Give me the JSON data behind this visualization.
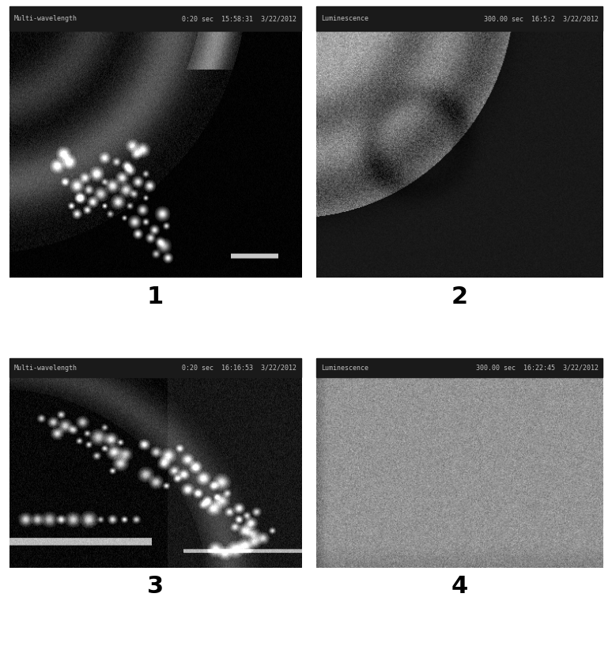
{
  "fig_width": 7.74,
  "fig_height": 8.27,
  "bg_color": "#ffffff",
  "panel_labels": [
    "1",
    "2",
    "3",
    "4"
  ],
  "label_fontsize": 22,
  "panel1_header_left": "Multi-wavelength",
  "panel1_header_right": "0:20 sec  15:58:31  3/22/2012",
  "panel2_header_left": "Luminescence",
  "panel2_header_right": "300.00 sec  16:5:2  3/22/2012",
  "panel3_header_left": "Multi-wavelength",
  "panel3_header_right": "0:20 sec  16:16:53  3/22/2012",
  "panel4_header_left": "Luminescence",
  "panel4_header_right": "300.00 sec  16:22:45  3/22/2012",
  "header_fontsize": 6.0,
  "header_bg": "#1a1a1a",
  "header_text_color": "#c0c0c0"
}
